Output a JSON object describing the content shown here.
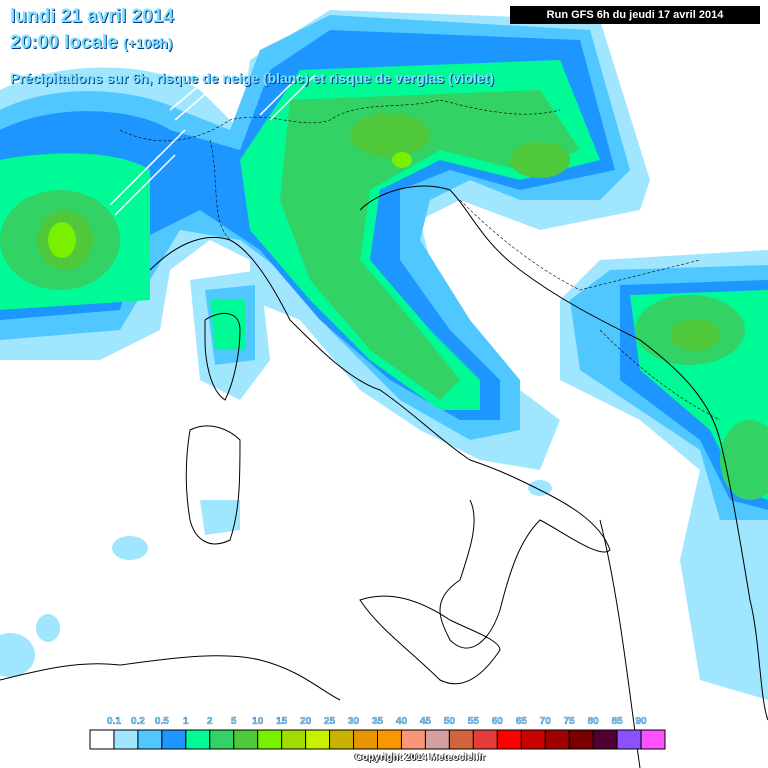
{
  "header": {
    "date": "lundi 21 avril 2014",
    "time": "20:00 locale",
    "lead": "(+108h)",
    "subtitle": "Précipitations sur 6h, risque de neige (blanc) et risque de verglas (violet)",
    "run": "Run GFS 6h du jeudi 17 avril 2014"
  },
  "legend": {
    "labels": [
      "0.1",
      "0.2",
      "0.5",
      "1",
      "2",
      "5",
      "10",
      "15",
      "20",
      "25",
      "30",
      "35",
      "40",
      "45",
      "50",
      "55",
      "60",
      "65",
      "70",
      "75",
      "80",
      "85",
      "90"
    ],
    "colors": [
      "#ffffff",
      "#a0e6ff",
      "#50c8ff",
      "#1e96ff",
      "#00fa96",
      "#32d264",
      "#50c83c",
      "#78f000",
      "#a0dc00",
      "#c8f000",
      "#c8b400",
      "#e69600",
      "#fa9600",
      "#fa9678",
      "#d2a0a0",
      "#d2643c",
      "#e63c3c",
      "#ff0000",
      "#c80000",
      "#a00000",
      "#780000",
      "#500032",
      "#8c50ff",
      "#ff50ff"
    ]
  },
  "footer": {
    "copyright": "Copyright 2014 Meteociel.fr"
  }
}
